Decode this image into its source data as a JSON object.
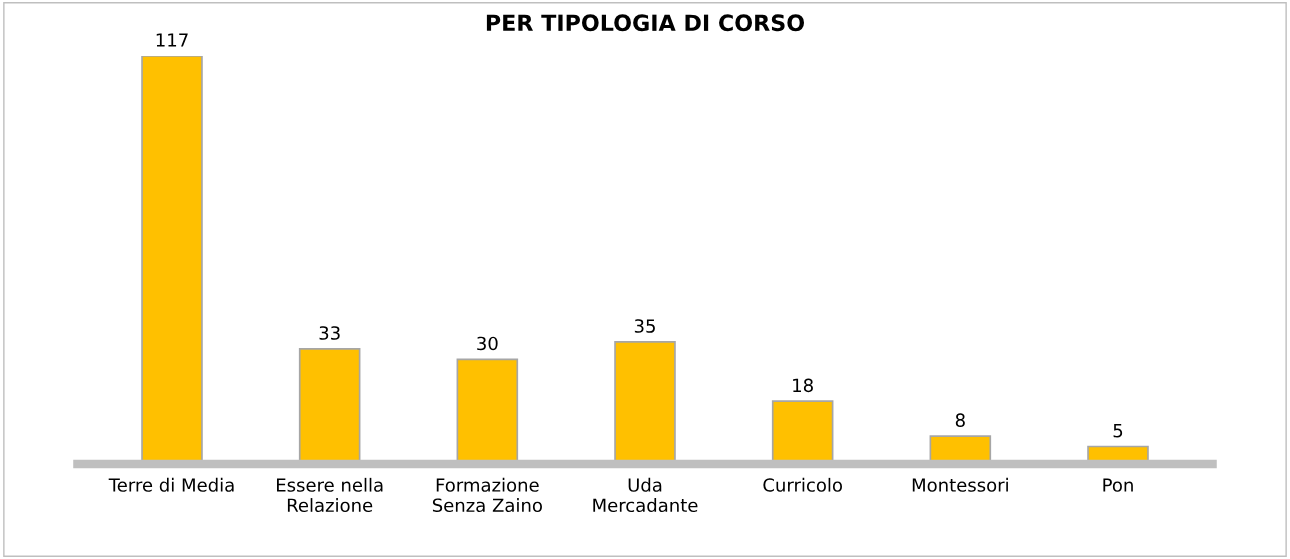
{
  "chart_data": {
    "type": "bar",
    "title": "PER TIPOLOGIA DI CORSO",
    "categories": [
      "Terre di Media",
      "Essere nella\nRelazione",
      "Formazione\nSenza Zaino",
      "Uda\nMercadante",
      "Curricolo",
      "Montessori",
      "Pon"
    ],
    "values": [
      117,
      33,
      30,
      35,
      18,
      8,
      5
    ],
    "color": "#ffc000",
    "data_labels": true,
    "grid": false,
    "legend": false,
    "tick_labels": "x"
  }
}
